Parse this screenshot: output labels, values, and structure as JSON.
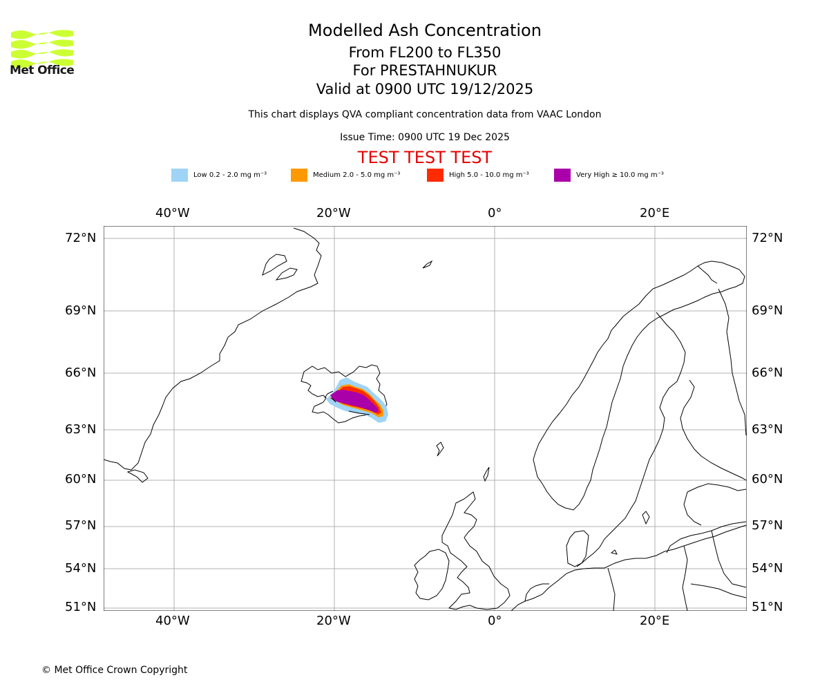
{
  "header": {
    "title": "Modelled Ash Concentration",
    "levels": "From FL200 to FL350",
    "volcano": "For PRESTAHNUKUR",
    "valid": "Valid at 0900 UTC 19/12/2025",
    "description": "This chart displays QVA compliant concentration data from VAAC London",
    "issue_time": "Issue Time: 0900 UTC 19 Dec 2025",
    "test_banner": "TEST TEST TEST"
  },
  "logo": {
    "text": "Met Office",
    "color": "#ccff33"
  },
  "legend": [
    {
      "label": "Low 0.2 - 2.0 mg m⁻³",
      "color": "#9fd4f7"
    },
    {
      "label": "Medium 2.0 - 5.0 mg m⁻³",
      "color": "#ff9900"
    },
    {
      "label": "High 5.0 - 10.0 mg m⁻³",
      "color": "#ff2b00"
    },
    {
      "label": "Very High ≥ 10.0 mg m⁻³",
      "color": "#aa00aa"
    }
  ],
  "map": {
    "lon_labels": [
      "40°W",
      "20°W",
      "0°",
      "20°E"
    ],
    "lat_labels": [
      "72°N",
      "69°N",
      "66°N",
      "63°N",
      "60°N",
      "57°N",
      "54°N",
      "51°N"
    ],
    "lon_range": [
      -49,
      31
    ],
    "lat_range": [
      51,
      72.5
    ],
    "gridline_color": "#b0b0b0",
    "ash_cloud_center": {
      "lon": -17,
      "lat": 64.4
    }
  },
  "footer": {
    "copyright": "© Met Office Crown Copyright"
  }
}
